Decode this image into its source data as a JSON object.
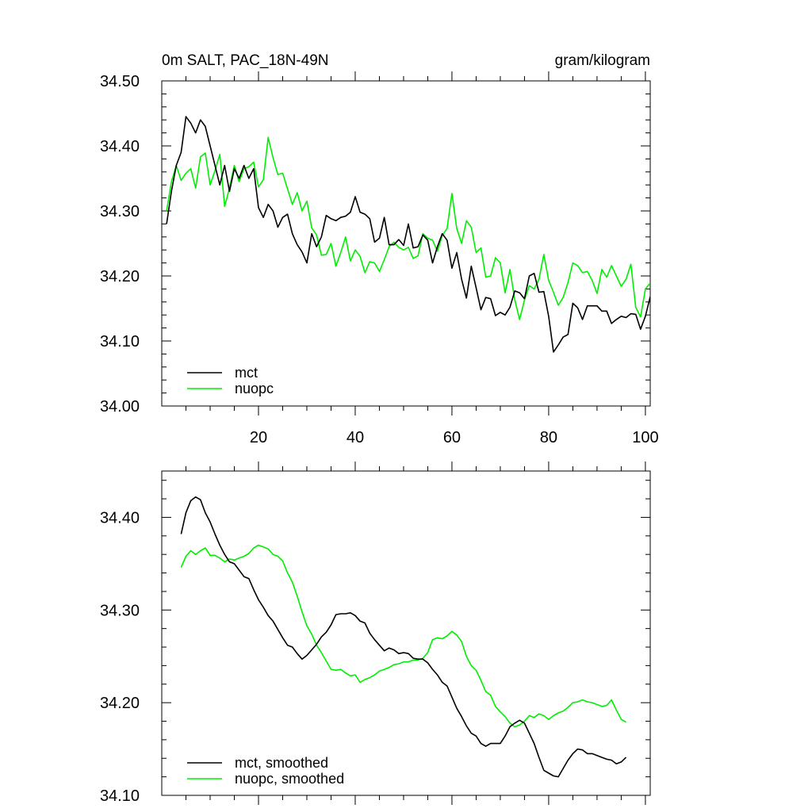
{
  "colors": {
    "mct": "#000000",
    "nuopc": "#00ee00",
    "frame": "#000000",
    "background": "#ffffff"
  },
  "chart_data": [
    {
      "type": "line",
      "title": "0m SALT, PAC_18N-49N",
      "units": "gram/kilogram",
      "xlim": [
        0,
        101
      ],
      "ylim": [
        34.0,
        34.5
      ],
      "xticks": [
        20,
        40,
        60,
        80,
        100
      ],
      "xticklabels": [
        "20",
        "40",
        "60",
        "80",
        "100"
      ],
      "yticks": [
        34.0,
        34.1,
        34.2,
        34.3,
        34.4,
        34.5
      ],
      "yticklabels": [
        "34.00",
        "34.10",
        "34.20",
        "34.30",
        "34.40",
        "34.50"
      ],
      "legend_position": "bottom-left",
      "series": [
        {
          "name": "mct",
          "color": "#000000",
          "x_start": 1,
          "values": [
            34.28,
            34.33,
            34.37,
            34.39,
            34.445,
            34.435,
            34.42,
            34.44,
            34.43,
            34.4,
            34.37,
            34.34,
            34.37,
            34.33,
            34.365,
            34.35,
            34.37,
            34.35,
            34.365,
            34.305,
            34.29,
            34.31,
            34.3,
            34.275,
            34.29,
            34.295,
            34.265,
            34.248,
            34.237,
            34.22,
            34.265,
            34.245,
            34.26,
            34.293,
            34.288,
            34.285,
            34.29,
            34.292,
            34.298,
            34.322,
            34.298,
            34.295,
            34.288,
            34.252,
            34.258,
            34.29,
            34.248,
            34.248,
            34.256,
            34.247,
            34.28,
            34.243,
            34.245,
            34.263,
            34.255,
            34.22,
            34.245,
            34.265,
            34.255,
            34.212,
            34.236,
            34.195,
            34.166,
            34.215,
            34.182,
            34.148,
            34.167,
            34.165,
            34.139,
            34.144,
            34.14,
            34.152,
            34.177,
            34.174,
            34.165,
            34.2,
            34.204,
            34.175,
            34.176,
            34.138,
            34.083,
            34.094,
            34.106,
            34.11,
            34.158,
            34.151,
            34.133,
            34.154,
            34.154,
            34.154,
            34.146,
            34.146,
            34.127,
            34.133,
            34.138,
            34.136,
            34.142,
            34.141,
            34.118,
            34.138,
            34.168
          ]
        },
        {
          "name": "nuopc",
          "color": "#00ee00",
          "x_start": 1,
          "values": [
            34.3,
            34.345,
            34.37,
            34.347,
            34.358,
            34.365,
            34.335,
            34.383,
            34.389,
            34.34,
            34.362,
            34.387,
            34.307,
            34.335,
            34.37,
            34.345,
            34.365,
            34.368,
            34.375,
            34.337,
            34.348,
            34.413,
            34.382,
            34.356,
            34.358,
            34.334,
            34.31,
            34.328,
            34.3,
            34.315,
            34.274,
            34.263,
            34.232,
            34.233,
            34.25,
            34.215,
            34.236,
            34.26,
            34.223,
            34.24,
            34.23,
            34.205,
            34.222,
            34.22,
            34.207,
            34.225,
            34.245,
            34.252,
            34.244,
            34.24,
            34.244,
            34.227,
            34.231,
            34.265,
            34.258,
            34.255,
            34.238,
            34.262,
            34.273,
            34.327,
            34.273,
            34.25,
            34.285,
            34.275,
            34.236,
            34.243,
            34.198,
            34.2,
            34.228,
            34.22,
            34.174,
            34.21,
            34.163,
            34.133,
            34.163,
            34.185,
            34.18,
            34.195,
            34.233,
            34.193,
            34.175,
            34.155,
            34.167,
            34.19,
            34.22,
            34.216,
            34.205,
            34.207,
            34.193,
            34.173,
            34.21,
            34.198,
            34.216,
            34.2,
            34.184,
            34.195,
            34.218,
            34.152,
            34.137,
            34.18,
            34.189
          ]
        }
      ]
    },
    {
      "type": "line",
      "title": "",
      "xlim": [
        0,
        101
      ],
      "ylim": [
        34.1,
        34.45
      ],
      "yticks": [
        34.1,
        34.2,
        34.3,
        34.4
      ],
      "yticklabels": [
        "34.10",
        "34.20",
        "34.30",
        "34.40"
      ],
      "legend_position": "bottom-left",
      "series": [
        {
          "name": "mct, smoothed",
          "color": "#000000",
          "x_start": 4,
          "values": [
            34.382,
            34.405,
            34.418,
            34.422,
            34.419,
            34.405,
            34.395,
            34.382,
            34.37,
            34.36,
            34.352,
            34.35,
            34.343,
            34.336,
            34.334,
            34.322,
            34.311,
            34.303,
            34.294,
            34.288,
            34.279,
            34.27,
            34.262,
            34.26,
            34.253,
            34.247,
            34.251,
            34.257,
            34.263,
            34.271,
            34.276,
            34.284,
            34.295,
            34.296,
            34.296,
            34.297,
            34.294,
            34.288,
            34.286,
            34.275,
            34.268,
            34.262,
            34.256,
            34.259,
            34.257,
            34.253,
            34.254,
            34.253,
            34.248,
            34.247,
            34.247,
            34.243,
            34.236,
            34.23,
            34.222,
            34.218,
            34.206,
            34.194,
            34.185,
            34.175,
            34.167,
            34.164,
            34.156,
            34.153,
            34.156,
            34.156,
            34.156,
            34.164,
            34.174,
            34.178,
            34.181,
            34.178,
            34.167,
            34.156,
            34.141,
            34.127,
            34.124,
            34.121,
            34.12,
            34.129,
            34.138,
            34.145,
            34.15,
            34.149,
            34.145,
            34.145,
            34.143,
            34.141,
            34.139,
            34.138,
            34.134,
            34.136,
            34.141
          ]
        },
        {
          "name": "nuopc, smoothed",
          "color": "#00ee00",
          "x_start": 4,
          "values": [
            34.346,
            34.358,
            34.364,
            34.36,
            34.364,
            34.367,
            34.359,
            34.359,
            34.356,
            34.352,
            34.355,
            34.354,
            34.356,
            34.358,
            34.361,
            34.367,
            34.37,
            34.368,
            34.366,
            34.36,
            34.358,
            34.353,
            34.34,
            34.33,
            34.315,
            34.298,
            34.283,
            34.274,
            34.262,
            34.254,
            34.245,
            34.236,
            34.235,
            34.236,
            34.232,
            34.229,
            34.23,
            34.222,
            34.225,
            34.227,
            34.23,
            34.234,
            34.236,
            34.238,
            34.241,
            34.242,
            34.244,
            34.244,
            34.246,
            34.246,
            34.248,
            34.254,
            34.268,
            34.27,
            34.269,
            34.272,
            34.277,
            34.273,
            34.266,
            34.25,
            34.24,
            34.235,
            34.224,
            34.212,
            34.208,
            34.196,
            34.19,
            34.185,
            34.178,
            34.174,
            34.176,
            34.18,
            34.186,
            34.184,
            34.188,
            34.186,
            34.182,
            34.186,
            34.189,
            34.191,
            34.195,
            34.2,
            34.201,
            34.203,
            34.201,
            34.2,
            34.198,
            34.196,
            34.197,
            34.203,
            34.192,
            34.182,
            34.179
          ]
        }
      ]
    }
  ]
}
